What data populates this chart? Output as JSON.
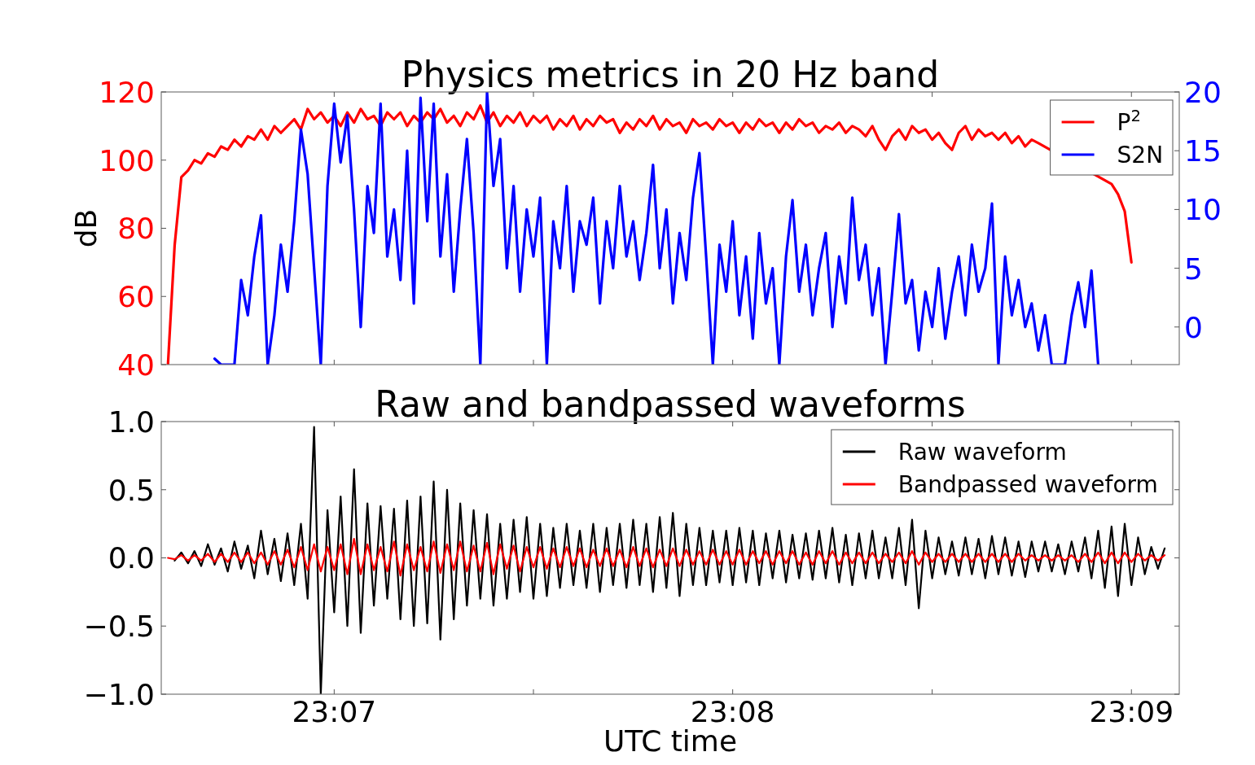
{
  "chart_data": [
    {
      "type": "line",
      "title": "Physics metrics in 20 Hz band",
      "ylabel": "dB",
      "legend": "top right",
      "tick_labels": "y",
      "xlim": [
        23.10944,
        23.152
      ],
      "xticks": [
        {
          "value": 23.11667,
          "label": null
        },
        {
          "value": 23.125,
          "label": null
        },
        {
          "value": 23.13333,
          "label": null
        },
        {
          "value": 23.14167,
          "label": null
        },
        {
          "value": 23.15,
          "label": null
        }
      ],
      "ylim": [
        40,
        120
      ],
      "yticks": [
        40,
        60,
        80,
        100,
        120
      ],
      "y2lim": [
        -3.2,
        20
      ],
      "y2ticks": [
        0,
        5,
        10,
        15,
        20
      ],
      "series": [
        {
          "name": "P$^{2}$",
          "color": "#ff0000",
          "x": [
            23.10972,
            23.11,
            23.11028,
            23.11056,
            23.11083,
            23.11111,
            23.11139,
            23.11167,
            23.11194,
            23.11222,
            23.1125,
            23.11278,
            23.11306,
            23.11333,
            23.11361,
            23.11389,
            23.11417,
            23.11444,
            23.11472,
            23.115,
            23.11528,
            23.11556,
            23.11583,
            23.11611,
            23.11639,
            23.11667,
            23.11694,
            23.11722,
            23.1175,
            23.11778,
            23.11806,
            23.11833,
            23.11861,
            23.11889,
            23.11917,
            23.11944,
            23.11972,
            23.12,
            23.12028,
            23.12056,
            23.12083,
            23.12111,
            23.12139,
            23.12167,
            23.12194,
            23.12222,
            23.1225,
            23.12278,
            23.12306,
            23.12333,
            23.12361,
            23.12389,
            23.12417,
            23.12444,
            23.12472,
            23.125,
            23.12528,
            23.12556,
            23.12583,
            23.12611,
            23.12639,
            23.12667,
            23.12694,
            23.12722,
            23.1275,
            23.12778,
            23.12806,
            23.12833,
            23.12861,
            23.12889,
            23.12917,
            23.12944,
            23.12972,
            23.13,
            23.13028,
            23.13056,
            23.13083,
            23.13111,
            23.13139,
            23.13167,
            23.13194,
            23.13222,
            23.1325,
            23.13278,
            23.13306,
            23.13333,
            23.13361,
            23.13389,
            23.13417,
            23.13444,
            23.13472,
            23.135,
            23.13528,
            23.13556,
            23.13583,
            23.13611,
            23.13639,
            23.13667,
            23.13694,
            23.13722,
            23.1375,
            23.13778,
            23.13806,
            23.13833,
            23.13861,
            23.13889,
            23.13917,
            23.13944,
            23.13972,
            23.14,
            23.14028,
            23.14056,
            23.14083,
            23.14111,
            23.14139,
            23.14167,
            23.14194,
            23.14222,
            23.1425,
            23.14278,
            23.14306,
            23.14333,
            23.14361,
            23.14389,
            23.14417,
            23.14444,
            23.14472,
            23.145,
            23.14528,
            23.14556,
            23.14583,
            23.14611,
            23.14917,
            23.14944,
            23.14972,
            23.15
          ],
          "values": [
            40,
            75,
            95,
            97,
            100,
            99,
            102,
            101,
            104,
            103,
            106,
            104,
            107,
            106,
            109,
            106,
            110,
            108,
            110,
            112,
            109,
            115,
            112,
            114,
            111,
            113,
            110,
            114,
            111,
            115,
            112,
            113,
            110,
            114,
            112,
            114,
            110,
            113,
            111,
            114,
            112,
            115,
            111,
            113,
            110,
            114,
            112,
            116,
            111,
            114,
            110,
            113,
            111,
            114,
            110,
            113,
            111,
            113,
            109,
            112,
            110,
            113,
            109,
            112,
            110,
            113,
            111,
            112,
            108,
            111,
            109,
            112,
            110,
            113,
            109,
            112,
            110,
            111,
            108,
            112,
            110,
            111,
            109,
            112,
            110,
            111,
            108,
            111,
            109,
            112,
            110,
            111,
            108,
            111,
            109,
            112,
            110,
            111,
            108,
            110,
            109,
            111,
            108,
            110,
            109,
            107,
            110,
            106,
            103,
            107,
            109,
            106,
            110,
            108,
            109,
            106,
            108,
            105,
            103,
            108,
            110,
            106,
            109,
            107,
            108,
            106,
            108,
            105,
            107,
            104,
            106,
            105,
            93,
            90,
            85,
            70
          ]
        },
        {
          "name": "S2N",
          "color": "#0000ff",
          "axis": "y2",
          "x": [
            23.11167,
            23.11194,
            23.11222,
            23.1125,
            23.11278,
            23.11306,
            23.11333,
            23.11361,
            23.11389,
            23.11417,
            23.11444,
            23.11472,
            23.115,
            23.11528,
            23.11556,
            23.11583,
            23.11611,
            23.11639,
            23.11667,
            23.11694,
            23.11722,
            23.1175,
            23.11778,
            23.11806,
            23.11833,
            23.11861,
            23.11889,
            23.11917,
            23.11944,
            23.11972,
            23.12,
            23.12028,
            23.12056,
            23.12083,
            23.12111,
            23.12139,
            23.12167,
            23.12194,
            23.12222,
            23.1225,
            23.12278,
            23.12306,
            23.12333,
            23.12361,
            23.12389,
            23.12417,
            23.12444,
            23.12472,
            23.125,
            23.12528,
            23.12556,
            23.12583,
            23.12611,
            23.12639,
            23.12667,
            23.12694,
            23.12722,
            23.1275,
            23.12778,
            23.12806,
            23.12833,
            23.12861,
            23.12889,
            23.12917,
            23.12944,
            23.12972,
            23.13,
            23.13028,
            23.13056,
            23.13083,
            23.13111,
            23.13139,
            23.13167,
            23.13194,
            23.13222,
            23.1325,
            23.13278,
            23.13306,
            23.13333,
            23.13361,
            23.13389,
            23.13417,
            23.13444,
            23.13472,
            23.135,
            23.13528,
            23.13556,
            23.13583,
            23.13611,
            23.13639,
            23.13667,
            23.13694,
            23.13722,
            23.1375,
            23.13778,
            23.13806,
            23.13833,
            23.13861,
            23.13889,
            23.13917,
            23.13944,
            23.13972,
            23.14,
            23.14028,
            23.14056,
            23.14083,
            23.14111,
            23.14139,
            23.14167,
            23.14194,
            23.14222,
            23.1425,
            23.14278,
            23.14306,
            23.14333,
            23.14361,
            23.14389,
            23.14417,
            23.14444,
            23.14472,
            23.145,
            23.14528,
            23.14556,
            23.14583,
            23.14611,
            23.14639,
            23.14667,
            23.14694,
            23.14722,
            23.1475,
            23.14778,
            23.14806,
            23.14833,
            23.14861
          ],
          "values": [
            -2.7,
            -3.2,
            -3.2,
            -3.2,
            4,
            1,
            6,
            9.5,
            -3.2,
            1,
            7,
            3,
            9,
            16.8,
            13,
            5,
            -3.2,
            12,
            19,
            14,
            18,
            10,
            0,
            12,
            8,
            19,
            6,
            10,
            4,
            15,
            2,
            19.5,
            9,
            19,
            6,
            13,
            3,
            10,
            16,
            8,
            -3.2,
            20,
            12,
            16,
            5,
            12,
            3,
            10,
            6,
            11,
            -3.2,
            9,
            5,
            12,
            3,
            9,
            7,
            11,
            2,
            9,
            5,
            12,
            6,
            9,
            4,
            8,
            13.8,
            5,
            10,
            2,
            8,
            4,
            11,
            14.8,
            6,
            -3.2,
            7,
            3,
            9,
            1,
            6,
            -1,
            8,
            2,
            5,
            -3.2,
            6,
            10.8,
            3,
            7,
            1,
            5,
            8,
            0,
            6,
            2,
            11,
            4,
            7,
            1,
            5,
            -3.2,
            3,
            9.6,
            2,
            4,
            -2,
            3,
            0,
            5,
            -1,
            3,
            6,
            1,
            7,
            3,
            5,
            10.5,
            -3.2,
            6,
            1,
            4,
            0,
            2,
            -2,
            1,
            -3.2,
            -3.2,
            -3.2,
            1,
            3.8,
            0,
            4.8,
            -3.2
          ]
        }
      ]
    },
    {
      "type": "line",
      "title": "Raw and bandpassed waveforms",
      "xlabel": "UTC time",
      "legend": "top right",
      "xlim": [
        23.10944,
        23.152
      ],
      "xticks": [
        {
          "value": 23.11667,
          "label": "23:07"
        },
        {
          "value": 23.125,
          "label": null
        },
        {
          "value": 23.13333,
          "label": "23:08"
        },
        {
          "value": 23.14167,
          "label": null
        },
        {
          "value": 23.15,
          "label": "23:09"
        }
      ],
      "ylim": [
        -1,
        1
      ],
      "yticks": [
        {
          "value": -1,
          "label": "−1.0"
        },
        {
          "value": -0.5,
          "label": "−0.5"
        },
        {
          "value": 0,
          "label": "0.0"
        },
        {
          "value": 0.5,
          "label": "0.5"
        },
        {
          "value": 1,
          "label": "1.0"
        }
      ],
      "x": [
        23.10972,
        23.11,
        23.11028,
        23.11056,
        23.11083,
        23.11111,
        23.11139,
        23.11167,
        23.11194,
        23.11222,
        23.1125,
        23.11278,
        23.11306,
        23.11333,
        23.11361,
        23.11389,
        23.11417,
        23.11444,
        23.11472,
        23.115,
        23.11528,
        23.11556,
        23.11583,
        23.11611,
        23.11639,
        23.11667,
        23.11694,
        23.11722,
        23.1175,
        23.11778,
        23.11806,
        23.11833,
        23.11861,
        23.11889,
        23.11917,
        23.11944,
        23.11972,
        23.12,
        23.12028,
        23.12056,
        23.12083,
        23.12111,
        23.12139,
        23.12167,
        23.12194,
        23.12222,
        23.1225,
        23.12278,
        23.12306,
        23.12333,
        23.12361,
        23.12389,
        23.12417,
        23.12444,
        23.12472,
        23.125,
        23.12528,
        23.12556,
        23.12583,
        23.12611,
        23.12639,
        23.12667,
        23.12694,
        23.12722,
        23.1275,
        23.12778,
        23.12806,
        23.12833,
        23.12861,
        23.12889,
        23.12917,
        23.12944,
        23.12972,
        23.13,
        23.13028,
        23.13056,
        23.13083,
        23.13111,
        23.13139,
        23.13167,
        23.13194,
        23.13222,
        23.1325,
        23.13278,
        23.13306,
        23.13333,
        23.13361,
        23.13389,
        23.13417,
        23.13444,
        23.13472,
        23.135,
        23.13528,
        23.13556,
        23.13583,
        23.13611,
        23.13639,
        23.13667,
        23.13694,
        23.13722,
        23.1375,
        23.13778,
        23.13806,
        23.13833,
        23.13861,
        23.13889,
        23.13917,
        23.13944,
        23.13972,
        23.14,
        23.14028,
        23.14056,
        23.14083,
        23.14111,
        23.14139,
        23.14167,
        23.14194,
        23.14222,
        23.1425,
        23.14278,
        23.14306,
        23.14333,
        23.14361,
        23.14389,
        23.14417,
        23.14444,
        23.14472,
        23.145,
        23.14528,
        23.14556,
        23.14583,
        23.14611,
        23.14639,
        23.14667,
        23.14694,
        23.14722,
        23.1475,
        23.14778,
        23.14806,
        23.14833,
        23.14861,
        23.14889,
        23.14917,
        23.14944,
        23.14972,
        23.15,
        23.15028,
        23.15056,
        23.15083,
        23.15111,
        23.15139
      ],
      "series": [
        {
          "name": "Raw waveform",
          "color": "#000000",
          "values": [
            null,
            -0.02,
            0.04,
            -0.04,
            0.05,
            -0.06,
            0.1,
            -0.05,
            0.07,
            -0.1,
            0.12,
            -0.08,
            0.09,
            -0.15,
            0.2,
            -0.12,
            0.14,
            -0.17,
            0.18,
            -0.2,
            0.25,
            -0.3,
            0.96,
            -1.0,
            0.35,
            -0.4,
            0.45,
            -0.5,
            0.65,
            -0.55,
            0.4,
            -0.35,
            0.38,
            -0.3,
            0.36,
            -0.45,
            0.42,
            -0.5,
            0.45,
            -0.48,
            0.56,
            -0.6,
            0.5,
            -0.45,
            0.4,
            -0.35,
            0.35,
            -0.3,
            0.32,
            -0.35,
            0.25,
            -0.3,
            0.28,
            -0.25,
            0.3,
            -0.3,
            0.25,
            -0.28,
            0.22,
            -0.22,
            0.25,
            -0.2,
            0.2,
            -0.22,
            0.25,
            -0.25,
            0.22,
            -0.2,
            0.25,
            -0.22,
            0.28,
            -0.2,
            0.25,
            -0.25,
            0.3,
            -0.22,
            0.33,
            -0.28,
            0.25,
            -0.2,
            0.22,
            -0.2,
            0.2,
            -0.18,
            0.2,
            -0.2,
            0.22,
            -0.18,
            0.2,
            -0.2,
            0.18,
            -0.15,
            0.2,
            -0.18,
            0.17,
            -0.15,
            0.18,
            -0.16,
            0.2,
            -0.15,
            0.22,
            -0.18,
            0.17,
            -0.2,
            0.18,
            -0.15,
            0.2,
            -0.15,
            0.15,
            -0.15,
            0.22,
            -0.2,
            0.28,
            -0.37,
            0.2,
            -0.15,
            0.15,
            -0.12,
            0.12,
            -0.13,
            0.15,
            -0.12,
            0.14,
            -0.15,
            0.16,
            -0.12,
            0.15,
            -0.13,
            0.12,
            -0.14,
            0.12,
            -0.1,
            0.12,
            -0.1,
            0.1,
            -0.12,
            0.12,
            -0.1,
            0.15,
            -0.15,
            0.2,
            -0.22,
            0.23,
            -0.28,
            0.25,
            -0.2,
            0.15,
            -0.12,
            0.08,
            -0.08,
            0.07
          ]
        },
        {
          "name": "Bandpassed waveform",
          "color": "#ff0000",
          "values": [
            0,
            -0.01,
            0.02,
            -0.02,
            0.02,
            -0.02,
            0.03,
            -0.03,
            0.03,
            -0.03,
            0.04,
            -0.03,
            0.04,
            -0.04,
            0.04,
            -0.05,
            0.05,
            -0.05,
            0.06,
            -0.07,
            0.08,
            -0.09,
            0.1,
            -0.1,
            0.08,
            -0.09,
            0.1,
            -0.12,
            0.14,
            -0.12,
            0.1,
            -0.09,
            0.08,
            -0.1,
            0.12,
            -0.13,
            0.1,
            -0.09,
            0.08,
            -0.1,
            0.12,
            -0.11,
            0.1,
            -0.09,
            0.12,
            -0.1,
            0.09,
            -0.1,
            0.11,
            -0.12,
            0.1,
            -0.08,
            0.09,
            -0.1,
            0.08,
            -0.07,
            0.08,
            -0.08,
            0.07,
            -0.07,
            0.08,
            -0.06,
            0.07,
            -0.07,
            0.06,
            -0.06,
            0.07,
            -0.06,
            0.06,
            -0.07,
            0.08,
            -0.06,
            0.07,
            -0.07,
            0.06,
            -0.06,
            0.07,
            -0.06,
            0.06,
            -0.05,
            0.05,
            -0.05,
            0.06,
            -0.05,
            0.05,
            -0.05,
            0.06,
            -0.05,
            0.05,
            -0.04,
            0.05,
            -0.05,
            0.05,
            -0.04,
            0.05,
            -0.05,
            0.04,
            -0.05,
            0.05,
            -0.04,
            0.05,
            -0.05,
            0.04,
            -0.04,
            0.04,
            -0.04,
            0.04,
            -0.04,
            0.03,
            -0.03,
            0.04,
            -0.04,
            0.05,
            -0.05,
            0.04,
            -0.03,
            0.03,
            -0.03,
            0.03,
            -0.03,
            0.03,
            -0.03,
            0.03,
            -0.03,
            0.03,
            -0.03,
            0.03,
            -0.03,
            0.03,
            -0.02,
            0.02,
            -0.02,
            0.02,
            -0.02,
            0.02,
            -0.02,
            0.02,
            -0.03,
            0.03,
            -0.03,
            0.04,
            -0.04,
            0.04,
            -0.04,
            0.04,
            -0.03,
            0.03,
            -0.02,
            0.02,
            -0.02,
            0.02
          ]
        }
      ]
    }
  ]
}
